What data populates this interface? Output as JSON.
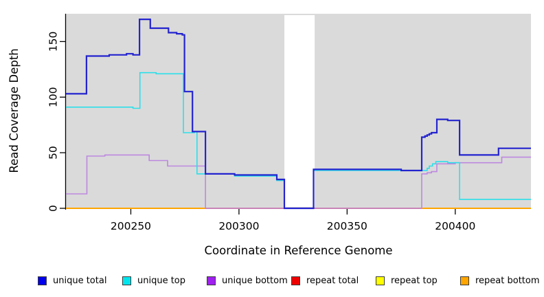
{
  "chart_data": {
    "type": "line",
    "title": "",
    "xlabel": "Coordinate in Reference Genome",
    "ylabel": "Read Coverage Depth",
    "xlim": [
      200220,
      200435
    ],
    "ylim": [
      0,
      175
    ],
    "x_ticks": [
      200250,
      200300,
      200350,
      200400
    ],
    "y_ticks": [
      0,
      50,
      100,
      150
    ],
    "grid": false,
    "legend_position": "bottom",
    "plot_background": "#DADADA",
    "page_background": "#FFFFFF",
    "masked_region": {
      "x_start": 200321,
      "x_end": 200335,
      "color": "#FFFFFF"
    },
    "series": [
      {
        "name": "unique total",
        "line_color": "#2323CF",
        "legend_color": "#0000EE",
        "line_width": 2.2,
        "step_points": [
          [
            200220,
            103
          ],
          [
            200229.5,
            137
          ],
          [
            200240,
            138
          ],
          [
            200248,
            139
          ],
          [
            200251,
            138
          ],
          [
            200254,
            170
          ],
          [
            200259,
            162
          ],
          [
            200267.4,
            158
          ],
          [
            200271.2,
            157
          ],
          [
            200273.8,
            156
          ],
          [
            200274.8,
            105
          ],
          [
            200278.5,
            69
          ],
          [
            200284.5,
            31
          ],
          [
            200298,
            30
          ],
          [
            200317.5,
            26
          ],
          [
            200321,
            0
          ],
          [
            200334.5,
            35
          ],
          [
            200375,
            34
          ],
          [
            200384.5,
            64
          ],
          [
            200386,
            65
          ],
          [
            200387,
            66
          ],
          [
            200388,
            67
          ],
          [
            200389,
            68
          ],
          [
            200391.5,
            80
          ],
          [
            200396.5,
            79
          ],
          [
            200402,
            48
          ],
          [
            200420,
            54
          ]
        ]
      },
      {
        "name": "unique top",
        "line_color": "#2BDFE9",
        "legend_color": "#00E5EE",
        "line_width": 1.6,
        "step_points": [
          [
            200220,
            91
          ],
          [
            200251,
            90
          ],
          [
            200254.2,
            122
          ],
          [
            200261.7,
            121
          ],
          [
            200274.3,
            68
          ],
          [
            200279.4,
            69
          ],
          [
            200280.6,
            31
          ],
          [
            200298,
            29
          ],
          [
            200317.5,
            25
          ],
          [
            200321,
            0
          ],
          [
            200334.5,
            34
          ],
          [
            200387,
            36
          ],
          [
            200388,
            38
          ],
          [
            200389.5,
            40
          ],
          [
            200391,
            42
          ],
          [
            200396.5,
            41
          ],
          [
            200402,
            8
          ]
        ]
      },
      {
        "name": "unique bottom",
        "line_color": "#BD87DF",
        "legend_color": "#A020F0",
        "line_width": 1.6,
        "step_points": [
          [
            200220,
            13
          ],
          [
            200229.7,
            47
          ],
          [
            200238,
            48
          ],
          [
            200258.5,
            43
          ],
          [
            200267,
            38
          ],
          [
            200284.5,
            0
          ],
          [
            200384.5,
            31
          ],
          [
            200387,
            32
          ],
          [
            200389,
            33
          ],
          [
            200391.5,
            40
          ],
          [
            200400,
            41
          ],
          [
            200421.5,
            46
          ]
        ]
      },
      {
        "name": "repeat total",
        "line_color": "#DD1111",
        "legend_color": "#EE0000",
        "line_width": 1.4,
        "step_points": [
          [
            200220,
            0
          ]
        ]
      },
      {
        "name": "repeat top",
        "line_color": "#FFFF00",
        "legend_color": "#FFFF00",
        "line_width": 1.4,
        "step_points": [
          [
            200220,
            0
          ]
        ]
      },
      {
        "name": "repeat bottom",
        "line_color": "#FFA500",
        "legend_color": "#FFA500",
        "line_width": 2,
        "step_points": [
          [
            200220,
            0
          ]
        ]
      }
    ],
    "render_artifacts": [
      {
        "kind": "zero-line-overlap",
        "x_start": 200284.5,
        "x_end": 200384.5,
        "value": 0,
        "color": "#DB4A72",
        "line_width": 1.6
      }
    ]
  }
}
